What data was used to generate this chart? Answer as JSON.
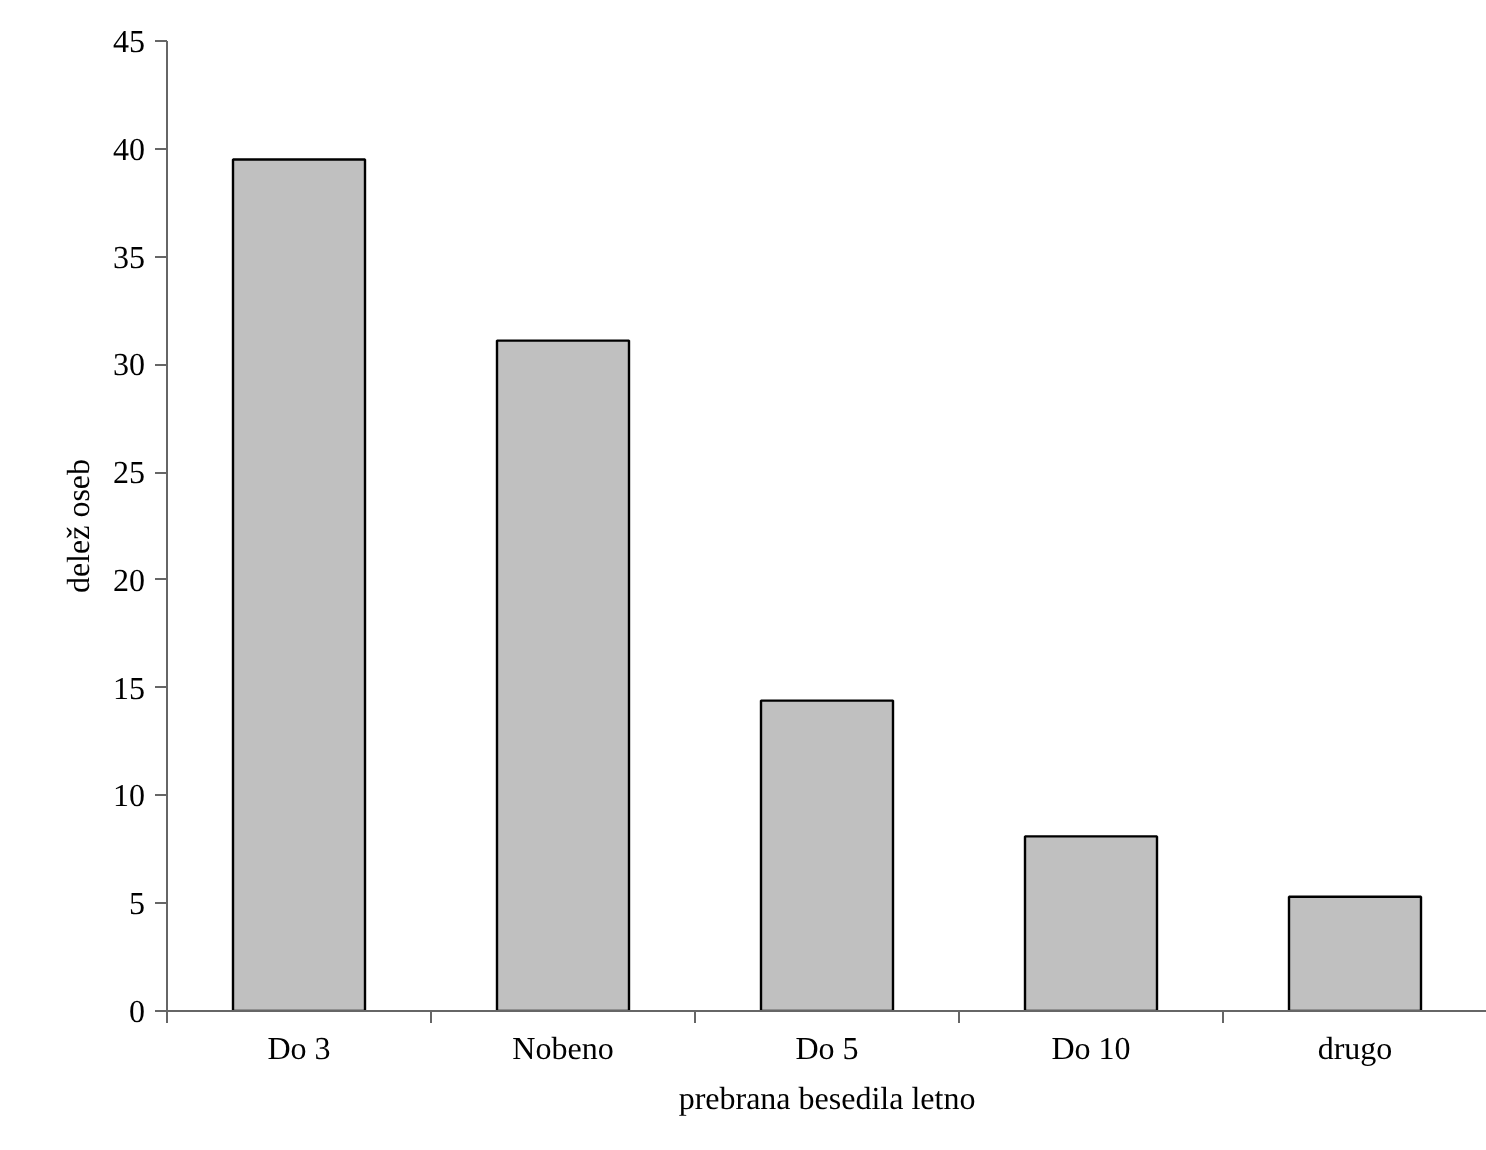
{
  "chart_data": {
    "type": "bar",
    "xlabel": "prebrana besedila letno",
    "ylabel": "delež oseb",
    "categories": [
      "Do 3",
      "Nobeno",
      "Do 5",
      "Do 10",
      "drugo"
    ],
    "values": [
      39.5,
      31.1,
      14.4,
      8.1,
      5.3
    ],
    "color": "#c0c0c0",
    "ylim": [
      0,
      45
    ],
    "yticks": [
      0,
      5,
      10,
      15,
      20,
      25,
      30,
      35,
      40,
      45
    ],
    "grid": false
  }
}
